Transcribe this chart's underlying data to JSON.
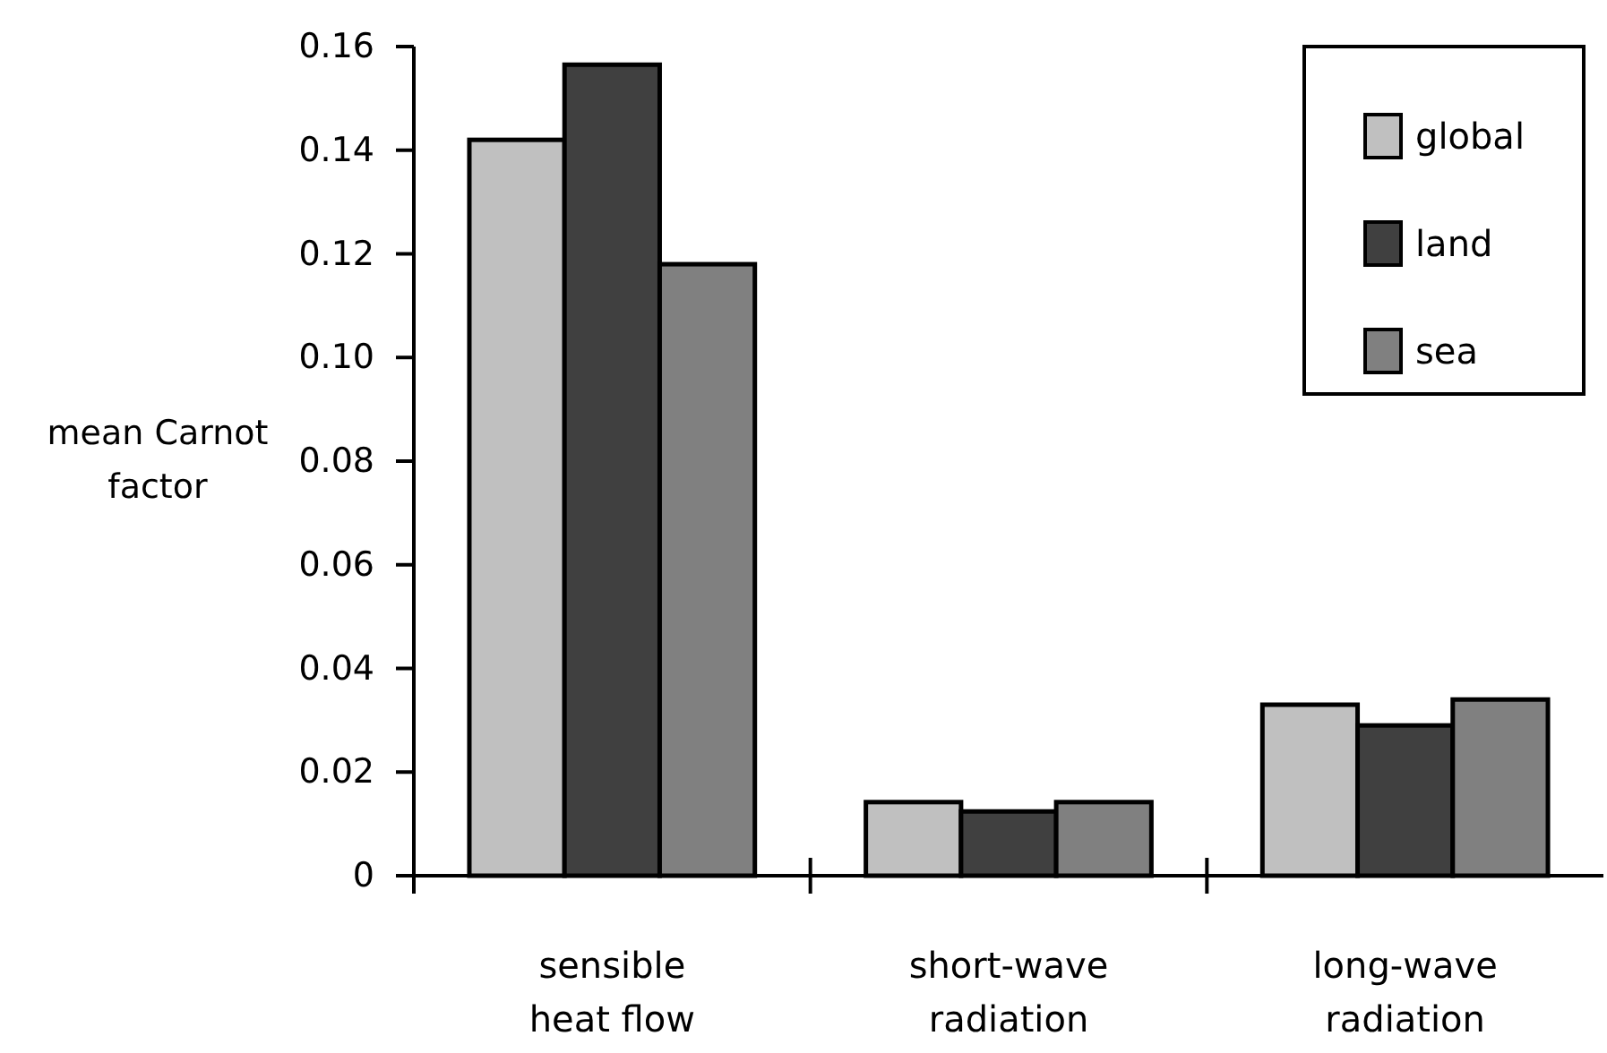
{
  "chart_data": {
    "type": "bar",
    "ylabel": "mean Carnot factor",
    "categories": [
      "sensible heat flow",
      "short-wave radiation",
      "long-wave radiation"
    ],
    "series": [
      {
        "name": "global",
        "color": "#c0c0c0",
        "values": [
          0.142,
          0.0142,
          0.033
        ]
      },
      {
        "name": "land",
        "color": "#404040",
        "values": [
          0.1565,
          0.0124,
          0.029
        ]
      },
      {
        "name": "sea",
        "color": "#808080",
        "values": [
          0.118,
          0.0142,
          0.034
        ]
      }
    ],
    "ylim": [
      0,
      0.16
    ],
    "yticks": [
      0,
      {
        "value": 0.02,
        "label": "0.02"
      },
      {
        "value": 0.04,
        "label": "0.04"
      },
      {
        "value": 0.06,
        "label": "0.06"
      },
      {
        "value": 0.08,
        "label": "0.08"
      },
      {
        "value": 0.1,
        "label": "0.10"
      },
      {
        "value": 0.12,
        "label": "0.12"
      },
      {
        "value": 0.14,
        "label": "0.14"
      },
      {
        "value": 0.16,
        "label": "0.16"
      }
    ],
    "grid": false,
    "legend": "top right"
  }
}
